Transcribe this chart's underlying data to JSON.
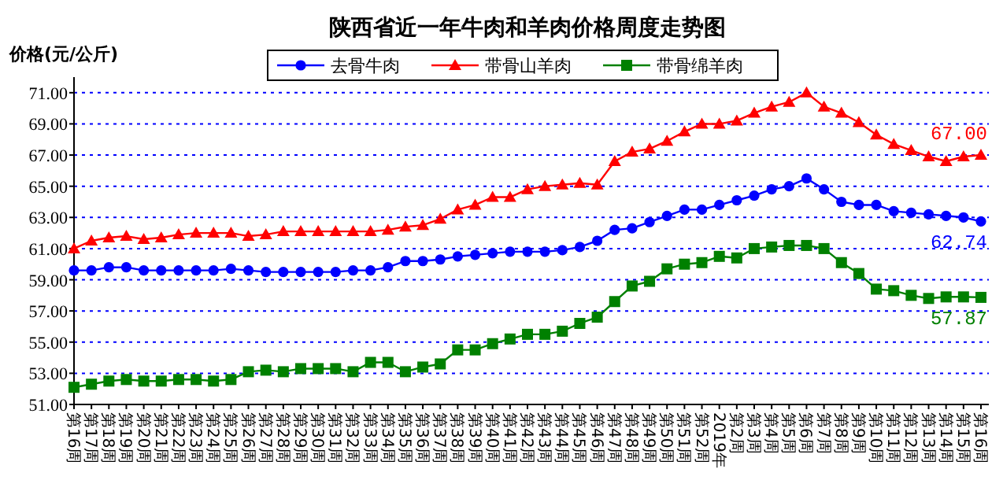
{
  "chart_data": {
    "type": "line",
    "title": "陕西省近一年牛肉和羊肉价格周度走势图",
    "ylabel": "价格(元/公斤)",
    "categories": [
      "第16周",
      "第17周",
      "第18周",
      "第19周",
      "第20周",
      "第21周",
      "第22周",
      "第23周",
      "第24周",
      "第25周",
      "第26周",
      "第27周",
      "第28周",
      "第29周",
      "第30周",
      "第31周",
      "第32周",
      "第33周",
      "第34周",
      "第35周",
      "第36周",
      "第37周",
      "第38周",
      "第39周",
      "第40周",
      "第41周",
      "第42周",
      "第43周",
      "第44周",
      "第45周",
      "第46周",
      "第47周",
      "第48周",
      "第49周",
      "第50周",
      "第51周",
      "第52周",
      "2019年",
      "第2周",
      "第3周",
      "第4周",
      "第5周",
      "第6周",
      "第7周",
      "第8周",
      "第9周",
      "第10周",
      "第11周",
      "第12周",
      "第13周",
      "第14周",
      "第15周",
      "第16周"
    ],
    "series": [
      {
        "name": "去骨牛肉",
        "color": "#0000ff",
        "marker": "circle",
        "values": [
          59.6,
          59.6,
          59.8,
          59.8,
          59.6,
          59.6,
          59.6,
          59.6,
          59.6,
          59.7,
          59.6,
          59.5,
          59.5,
          59.5,
          59.5,
          59.5,
          59.6,
          59.6,
          59.8,
          60.2,
          60.2,
          60.3,
          60.5,
          60.6,
          60.7,
          60.8,
          60.8,
          60.8,
          60.9,
          61.1,
          61.5,
          62.2,
          62.3,
          62.7,
          63.1,
          63.5,
          63.5,
          63.8,
          64.1,
          64.4,
          64.8,
          65.0,
          65.5,
          64.8,
          64.0,
          63.8,
          63.8,
          63.4,
          63.3,
          63.2,
          63.1,
          63.0,
          62.74
        ],
        "value_labels": [
          null,
          null,
          null,
          null,
          null,
          null,
          null,
          null,
          null,
          null,
          null,
          null,
          null,
          null,
          null,
          null,
          null,
          null,
          null,
          null,
          null,
          null,
          null,
          null,
          null,
          null,
          null,
          null,
          null,
          null,
          null,
          null,
          null,
          null,
          null,
          null,
          null,
          null,
          null,
          null,
          null,
          null,
          null,
          null,
          null,
          null,
          null,
          null,
          null,
          null,
          null,
          null,
          "62.74"
        ]
      },
      {
        "name": "带骨山羊肉",
        "color": "#ff0000",
        "marker": "triangle",
        "values": [
          61.0,
          61.5,
          61.7,
          61.8,
          61.6,
          61.7,
          61.9,
          62.0,
          62.0,
          62.0,
          61.8,
          61.9,
          62.1,
          62.1,
          62.1,
          62.1,
          62.1,
          62.1,
          62.2,
          62.4,
          62.5,
          62.9,
          63.5,
          63.8,
          64.3,
          64.3,
          64.8,
          65.0,
          65.1,
          65.2,
          65.1,
          66.6,
          67.2,
          67.4,
          67.9,
          68.5,
          69.0,
          69.0,
          69.2,
          69.7,
          70.1,
          70.4,
          71.0,
          70.1,
          69.7,
          69.1,
          68.3,
          67.7,
          67.3,
          66.9,
          66.6,
          66.9,
          67.0
        ],
        "value_labels": [
          null,
          null,
          null,
          null,
          null,
          null,
          null,
          null,
          null,
          null,
          null,
          null,
          null,
          null,
          null,
          null,
          null,
          null,
          null,
          null,
          null,
          null,
          null,
          null,
          null,
          null,
          null,
          null,
          null,
          null,
          null,
          null,
          null,
          null,
          null,
          null,
          null,
          null,
          null,
          null,
          null,
          null,
          null,
          null,
          null,
          null,
          null,
          null,
          null,
          null,
          null,
          null,
          "67.00"
        ]
      },
      {
        "name": "带骨绵羊肉",
        "color": "#008000",
        "marker": "square",
        "values": [
          52.1,
          52.3,
          52.5,
          52.6,
          52.5,
          52.5,
          52.6,
          52.6,
          52.5,
          52.6,
          53.1,
          53.2,
          53.1,
          53.3,
          53.3,
          53.3,
          53.1,
          53.7,
          53.7,
          53.1,
          53.4,
          53.6,
          54.5,
          54.5,
          54.9,
          55.2,
          55.5,
          55.5,
          55.7,
          56.2,
          56.6,
          57.6,
          58.6,
          58.9,
          59.7,
          60.0,
          60.1,
          60.5,
          60.4,
          61.0,
          61.1,
          61.2,
          61.2,
          61.0,
          60.1,
          59.4,
          58.4,
          58.3,
          58.0,
          57.8,
          57.9,
          57.9,
          57.87
        ],
        "value_labels": [
          null,
          null,
          null,
          null,
          null,
          null,
          null,
          null,
          null,
          null,
          null,
          null,
          null,
          null,
          null,
          null,
          null,
          null,
          null,
          null,
          null,
          null,
          null,
          null,
          null,
          null,
          null,
          null,
          null,
          null,
          null,
          null,
          null,
          null,
          null,
          null,
          null,
          null,
          null,
          null,
          null,
          null,
          null,
          null,
          null,
          null,
          null,
          null,
          null,
          null,
          null,
          null,
          "57.87"
        ]
      }
    ],
    "ylim": [
      51,
      72
    ],
    "yticks": [
      {
        "value": 51,
        "label": "51.00"
      },
      {
        "value": 53,
        "label": "53.00"
      },
      {
        "value": 55,
        "label": "55.00"
      },
      {
        "value": 57,
        "label": "57.00"
      },
      {
        "value": 59,
        "label": "59.00"
      },
      {
        "value": 61,
        "label": "61.00"
      },
      {
        "value": 63,
        "label": "63.00"
      },
      {
        "value": 65,
        "label": "65.00"
      },
      {
        "value": 67,
        "label": "67.00"
      },
      {
        "value": 69,
        "label": "69.00"
      },
      {
        "value": 71,
        "label": "71.00"
      }
    ],
    "grid": "y",
    "legend": "top",
    "line_style": "solid"
  }
}
